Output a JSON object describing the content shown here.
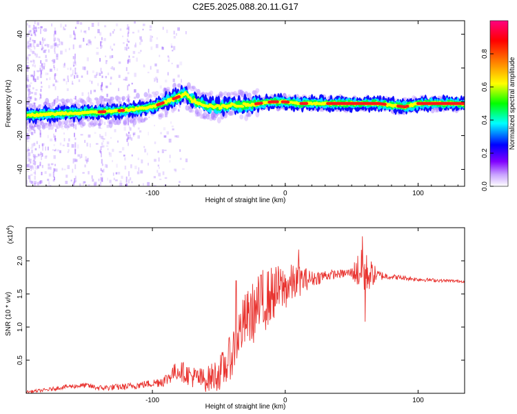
{
  "figure_title": "C2E5.2025.088.20.11.G17",
  "chart_data": [
    {
      "type": "heatmap",
      "xlabel": "Height of straight line (km)",
      "ylabel": "Frequency (Hz)",
      "xlim": [
        -195,
        135
      ],
      "ylim": [
        -50,
        48
      ],
      "xticks": [
        -100,
        0,
        100
      ],
      "xtick_labels": [
        "-100",
        "0",
        "100"
      ],
      "yticks": [
        -40,
        -20,
        0,
        20,
        40
      ],
      "ytick_labels": [
        "-40",
        "-20",
        "0",
        "20",
        "40"
      ],
      "colorbar": {
        "label": "Normalized spectral amplitude",
        "range": [
          0,
          1
        ],
        "ticks": [
          0,
          0.2,
          0.4,
          0.6,
          0.8
        ],
        "tick_labels": [
          "0.0",
          "0.2",
          "0.4",
          "0.6",
          "0.8"
        ],
        "colormap": [
          "#ffffff",
          "#8000ff",
          "#0000ff",
          "#00ffff",
          "#00ff00",
          "#ffff00",
          "#ff8000",
          "#ff0000",
          "#ff0080"
        ]
      },
      "ridge": {
        "x": [
          -195,
          -170,
          -140,
          -120,
          -100,
          -90,
          -80,
          -75,
          -70,
          -60,
          -50,
          -40,
          -30,
          -20,
          -10,
          0,
          10,
          30,
          50,
          70,
          80,
          90,
          100,
          120,
          135
        ],
        "y": [
          -8,
          -7,
          -6,
          -5,
          -3,
          0,
          3,
          5,
          1,
          -2,
          -3,
          -2,
          -2,
          -1,
          0,
          0,
          -1,
          -1,
          -1,
          -1,
          -2,
          -3,
          -1,
          -1,
          -1
        ]
      }
    },
    {
      "type": "line",
      "xlabel": "Height of straight line (km)",
      "ylabel": "SNR (10 * v/v)",
      "y_multiplier_label": "(x10",
      "y_multiplier_exponent": "4",
      "xlim": [
        -195,
        135
      ],
      "ylim": [
        0,
        2.5
      ],
      "xticks": [
        -100,
        0,
        100
      ],
      "xtick_labels": [
        "-100",
        "0",
        "100"
      ],
      "yticks": [
        0.5,
        1.0,
        1.5,
        2.0
      ],
      "ytick_labels": [
        "0.5",
        "1.0",
        "1.5",
        "2.0"
      ],
      "line_color": "#e8302c",
      "envelope": {
        "x": [
          -195,
          -180,
          -165,
          -150,
          -140,
          -120,
          -100,
          -90,
          -85,
          -80,
          -75,
          -70,
          -60,
          -50,
          -45,
          -40,
          -35,
          -30,
          -25,
          -20,
          -15,
          -10,
          -5,
          0,
          5,
          10,
          15,
          20,
          25,
          30,
          40,
          50,
          55,
          58,
          60,
          62,
          65,
          70,
          80,
          90,
          100,
          110,
          120,
          135
        ],
        "y": [
          0.02,
          0.05,
          0.1,
          0.12,
          0.08,
          0.1,
          0.15,
          0.2,
          0.3,
          0.35,
          0.3,
          0.25,
          0.2,
          0.3,
          0.4,
          0.6,
          0.9,
          1.1,
          1.2,
          1.3,
          1.4,
          1.5,
          1.55,
          1.6,
          1.65,
          1.7,
          1.72,
          1.73,
          1.75,
          1.78,
          1.8,
          1.82,
          1.85,
          1.85,
          1.82,
          1.8,
          1.8,
          1.78,
          1.76,
          1.74,
          1.72,
          1.71,
          1.7,
          1.69
        ]
      },
      "noise": {
        "x": [
          -195,
          -150,
          -100,
          -80,
          -60,
          -40,
          -20,
          0,
          10,
          20,
          40,
          50,
          55,
          60,
          65,
          70,
          80,
          100,
          135
        ],
        "amp": [
          0.02,
          0.04,
          0.06,
          0.15,
          0.18,
          0.35,
          0.5,
          0.35,
          0.25,
          0.12,
          0.06,
          0.08,
          0.3,
          0.35,
          0.2,
          0.08,
          0.04,
          0.03,
          0.02
        ]
      },
      "spikes": [
        [
          10,
          2.17
        ],
        [
          58,
          2.37
        ],
        [
          60,
          1.08
        ],
        [
          -37,
          1.7
        ],
        [
          -17,
          1.86
        ]
      ]
    }
  ]
}
